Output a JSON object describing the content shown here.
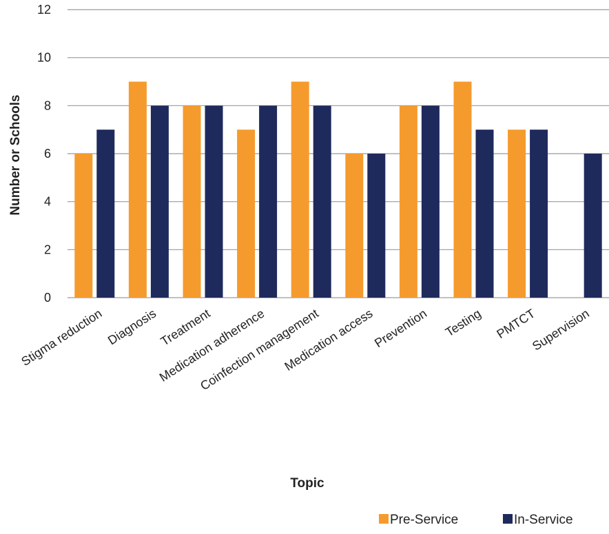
{
  "chart_data": {
    "type": "bar",
    "title": "",
    "xlabel": "Topic",
    "ylabel": "Number or Schools",
    "ylim": [
      0,
      12
    ],
    "yticks": [
      0,
      2,
      4,
      6,
      8,
      10,
      12
    ],
    "grid": true,
    "legend_position": "bottom-right",
    "categories": [
      "Stigma reduction",
      "Diagnosis",
      "Treatment",
      "Medication adherence",
      "Coinfection management",
      "Medication access",
      "Prevention",
      "Testing",
      "PMTCT",
      "Supervision"
    ],
    "series": [
      {
        "name": "Pre-Service",
        "color": "#F59B2E",
        "values": [
          6,
          9,
          8,
          7,
          9,
          6,
          8,
          9,
          7,
          0
        ]
      },
      {
        "name": "In-Service",
        "color": "#1F2A5C",
        "values": [
          7,
          8,
          8,
          8,
          8,
          6,
          8,
          7,
          7,
          6
        ]
      }
    ]
  },
  "colors": {
    "grid": "#9a9a9a",
    "text": "#222222"
  }
}
